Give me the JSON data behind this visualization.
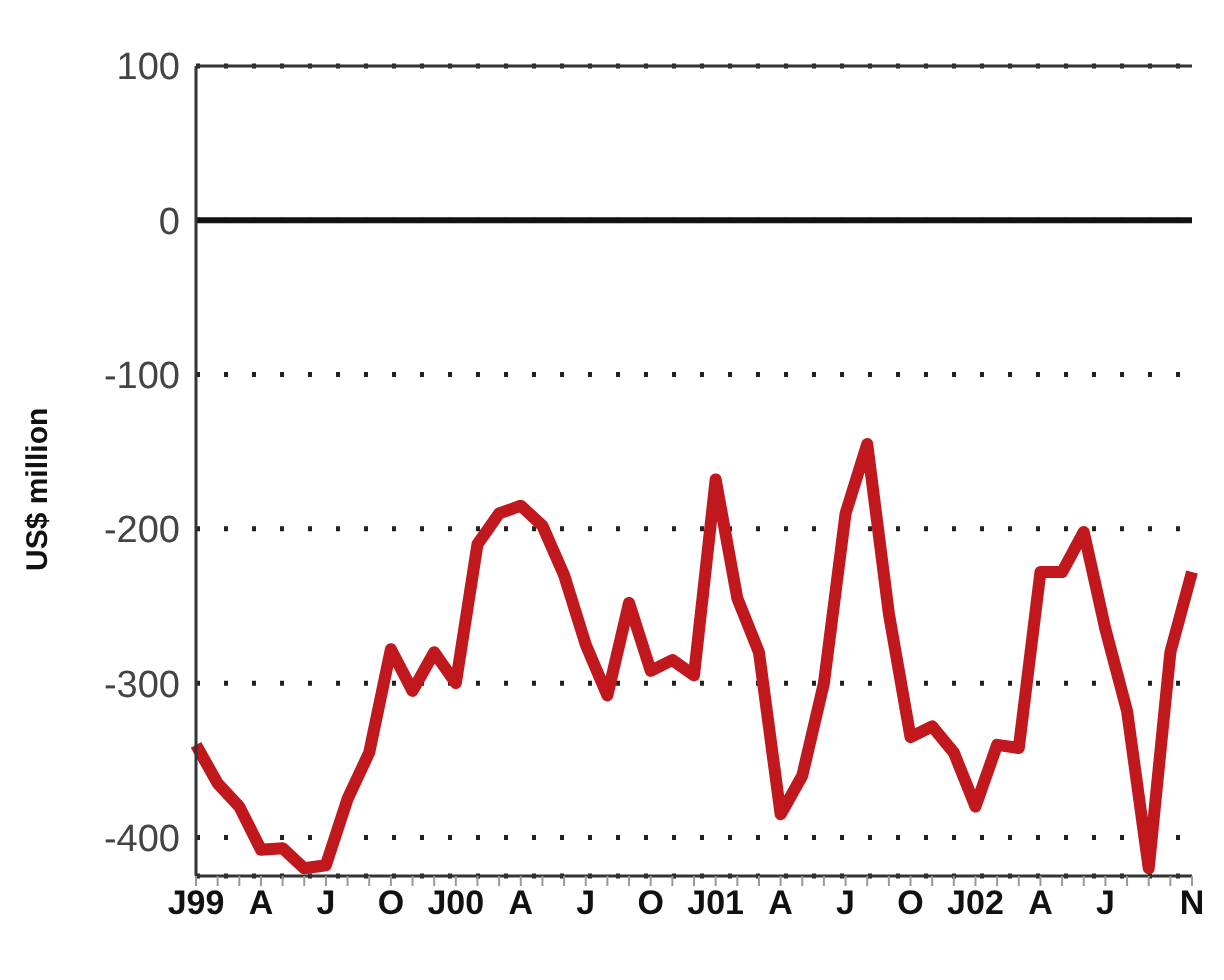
{
  "chart_data": {
    "type": "line",
    "ylabel": "US$ million",
    "categories": [
      "J99",
      null,
      null,
      "A",
      null,
      null,
      "J",
      null,
      null,
      "O",
      null,
      null,
      "J00",
      null,
      null,
      "A",
      null,
      null,
      "J",
      null,
      null,
      "O",
      null,
      null,
      "J01",
      null,
      null,
      "A",
      null,
      null,
      "J",
      null,
      null,
      "O",
      null,
      null,
      "J02",
      null,
      null,
      "A",
      null,
      null,
      "J",
      null,
      null,
      null,
      "N"
    ],
    "series": [
      {
        "color": "#c0181c",
        "values": [
          -340,
          -365,
          -380,
          -408,
          -407,
          -420,
          -418,
          -375,
          -345,
          -278,
          -305,
          -280,
          -300,
          -210,
          -190,
          -185,
          -198,
          -230,
          -275,
          -308,
          -248,
          -292,
          -285,
          -295,
          -168,
          -245,
          -280,
          -385,
          -360,
          -300,
          -190,
          -145,
          -255,
          -335,
          -328,
          -345,
          -380,
          -340,
          -342,
          -228,
          -228,
          -202,
          -265,
          -318,
          -420,
          -280,
          -228
        ]
      }
    ],
    "ylim": [
      -425,
      100
    ],
    "yticks": [
      100,
      0,
      -100,
      -200,
      -300,
      -400
    ],
    "grid": "y",
    "marker": "none",
    "line_style": "solid",
    "legend": false,
    "ref_lines": [
      {
        "axis": "y",
        "value": 0,
        "color": "#111111",
        "line_style": "solid"
      }
    ]
  }
}
